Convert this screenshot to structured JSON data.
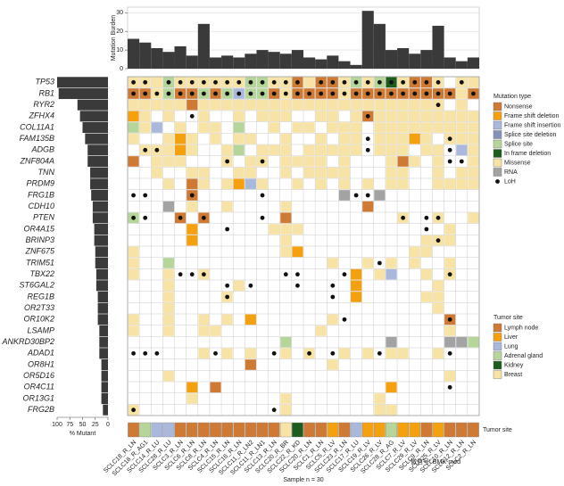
{
  "chart_data": {
    "type": "oncoprint",
    "samples": [
      "SCLC18_R_LN",
      "SCLC18_R_AG1",
      "SCLC14_R_LU",
      "SCLC28_R_LU",
      "SCLC3_R_LN",
      "SCLC6_R_LN",
      "SCLC8_R_LN",
      "SCLC4_R_LN",
      "SCLC15_R_LN",
      "SCLC16_R_LN",
      "SCLC11_R_LN2",
      "SCLC11_R_LN1",
      "SCLC13_R_LN",
      "SCLC20_R_BR",
      "SCLC22_R_KD",
      "SCLC20_R_LN",
      "SCLC1_R_LN",
      "SCLC5_R_LV",
      "SCLC23_R_LN",
      "SCLC17_R_LU",
      "SCLC19_R_LV",
      "SCLC26_R_LV",
      "SCLC28_R_AG",
      "SCLC7_R_LV",
      "SCLC29_R_LV",
      "SCLC9_R_LN",
      "SCLC25_R_LV",
      "SCLC10_R_LN",
      "SCLC12_R_LN",
      "SCLC2_R_LN"
    ],
    "genes": [
      "TP53",
      "RB1",
      "RYR2",
      "ZFHX4",
      "COL11A1",
      "FAM135B",
      "ADGB",
      "ZNF804A",
      "TNN",
      "PRDM9",
      "FRG1B",
      "CDH10",
      "PTEN",
      "OR4A15",
      "BRINP3",
      "ZNF675",
      "TRIM51",
      "TBX22",
      "ST6GAL2",
      "REG1B",
      "OR2T33",
      "OR10K2",
      "LSAMP",
      "ANKRD30BP2",
      "ADAD1",
      "OR8H1",
      "OR5D16",
      "OR4C11",
      "OR13G1",
      "FRG2B"
    ],
    "burden": {
      "ylabel": "Mutation Burden",
      "color": "#3a3a3a",
      "ylim": [
        0,
        33
      ],
      "yticks": [
        0,
        10,
        20,
        30
      ],
      "values": [
        16,
        14,
        11,
        9,
        12,
        7,
        24,
        6,
        7,
        6,
        8,
        10,
        9,
        8,
        10,
        6,
        5,
        7,
        4,
        2,
        31,
        24,
        10,
        11,
        8,
        10,
        23,
        6,
        4,
        6
      ]
    },
    "mutant": {
      "xlabel": "% Mutant",
      "color": "#3a3a3a",
      "xlim": [
        0,
        100
      ],
      "xticks": [
        100,
        75,
        50,
        25,
        0
      ],
      "values": [
        100,
        97,
        60,
        55,
        50,
        45,
        40,
        40,
        35,
        35,
        33,
        30,
        30,
        27,
        27,
        25,
        25,
        23,
        23,
        20,
        20,
        20,
        17,
        17,
        17,
        13,
        13,
        13,
        13,
        10
      ]
    },
    "mutation_types": {
      "title": "Mutation type",
      "names": [
        "Nonsense",
        "Frame shift deletion",
        "Frame shift insertion",
        "Splice site deletion",
        "Splice site",
        "In frame deletion",
        "Missense",
        "RNA"
      ],
      "colors": [
        "#cf7a34",
        "#f5a10f",
        "#aab8dc",
        "#8494b8",
        "#b5d59a",
        "#1e5c1e",
        "#f8e3a6",
        "#a3a3a3"
      ]
    },
    "loh_label": "LoH",
    "mutations": [
      [
        6,
        6,
        6,
        4,
        6,
        6,
        6,
        6,
        6,
        6,
        4,
        4,
        6,
        6,
        0,
        6,
        0,
        0,
        6,
        4,
        6,
        4,
        5,
        6,
        0,
        0,
        6,
        null,
        6,
        6
      ],
      [
        0,
        0,
        6,
        4,
        0,
        0,
        4,
        0,
        4,
        2,
        4,
        4,
        0,
        6,
        0,
        0,
        0,
        0,
        6,
        0,
        0,
        0,
        0,
        0,
        0,
        0,
        0,
        0,
        6,
        0
      ],
      [
        6,
        6,
        6,
        6,
        6,
        0,
        6,
        6,
        6,
        6,
        6,
        6,
        6,
        6,
        6,
        6,
        6,
        6,
        6,
        6,
        6,
        6,
        6,
        6,
        6,
        6,
        6,
        null,
        6,
        null
      ],
      [
        1,
        6,
        null,
        6,
        null,
        null,
        6,
        null,
        null,
        6,
        null,
        6,
        6,
        6,
        null,
        null,
        6,
        6,
        null,
        6,
        0,
        6,
        6,
        6,
        6,
        6,
        6,
        6,
        6,
        6
      ],
      [
        4,
        6,
        2,
        null,
        6,
        null,
        6,
        6,
        null,
        4,
        null,
        null,
        6,
        null,
        6,
        6,
        null,
        6,
        6,
        6,
        null,
        6,
        6,
        6,
        6,
        6,
        6,
        6,
        6,
        6
      ],
      [
        6,
        null,
        null,
        6,
        1,
        6,
        null,
        6,
        null,
        6,
        6,
        null,
        null,
        6,
        null,
        null,
        6,
        null,
        6,
        6,
        null,
        6,
        6,
        6,
        1,
        6,
        null,
        6,
        6,
        6
      ],
      [
        null,
        6,
        6,
        6,
        1,
        6,
        null,
        null,
        6,
        4,
        null,
        6,
        6,
        6,
        null,
        6,
        6,
        6,
        6,
        6,
        null,
        6,
        6,
        6,
        null,
        6,
        6,
        null,
        2,
        6
      ],
      [
        0,
        null,
        6,
        6,
        6,
        null,
        null,
        null,
        6,
        null,
        6,
        6,
        null,
        6,
        6,
        6,
        6,
        null,
        6,
        null,
        null,
        null,
        6,
        0,
        6,
        null,
        6,
        null,
        null,
        6
      ],
      [
        null,
        null,
        6,
        null,
        null,
        6,
        6,
        null,
        null,
        6,
        6,
        null,
        null,
        6,
        null,
        6,
        6,
        6,
        6,
        null,
        null,
        null,
        6,
        6,
        null,
        null,
        6,
        null,
        6,
        6
      ],
      [
        null,
        null,
        null,
        6,
        null,
        0,
        6,
        null,
        6,
        1,
        2,
        6,
        null,
        null,
        6,
        null,
        6,
        null,
        6,
        null,
        6,
        null,
        6,
        6,
        null,
        null,
        6,
        6,
        6,
        6
      ],
      [
        null,
        null,
        null,
        null,
        null,
        0,
        null,
        null,
        null,
        null,
        null,
        null,
        null,
        null,
        null,
        null,
        null,
        null,
        7,
        null,
        null,
        7,
        null,
        null,
        null,
        null,
        null,
        null,
        null,
        null
      ],
      [
        null,
        null,
        null,
        7,
        null,
        6,
        null,
        null,
        6,
        null,
        null,
        null,
        null,
        6,
        null,
        null,
        null,
        null,
        null,
        null,
        0,
        null,
        null,
        null,
        null,
        null,
        null,
        null,
        null,
        null
      ],
      [
        4,
        null,
        null,
        null,
        0,
        null,
        0,
        null,
        null,
        null,
        null,
        null,
        null,
        0,
        null,
        null,
        null,
        null,
        null,
        null,
        null,
        null,
        null,
        6,
        null,
        null,
        6,
        null,
        null,
        6
      ],
      [
        null,
        null,
        null,
        null,
        null,
        1,
        null,
        null,
        null,
        null,
        null,
        null,
        6,
        6,
        6,
        null,
        null,
        null,
        null,
        null,
        null,
        null,
        null,
        null,
        null,
        null,
        null,
        6,
        null,
        null
      ],
      [
        null,
        null,
        null,
        null,
        null,
        1,
        null,
        null,
        null,
        null,
        null,
        null,
        null,
        6,
        null,
        null,
        null,
        null,
        null,
        null,
        null,
        null,
        null,
        null,
        null,
        6,
        6,
        6,
        null,
        null
      ],
      [
        6,
        null,
        null,
        null,
        null,
        null,
        null,
        null,
        null,
        null,
        null,
        null,
        null,
        6,
        1,
        null,
        null,
        null,
        null,
        null,
        null,
        null,
        null,
        null,
        6,
        6,
        null,
        null,
        null,
        null
      ],
      [
        6,
        null,
        null,
        4,
        null,
        null,
        null,
        null,
        null,
        null,
        null,
        null,
        null,
        null,
        null,
        null,
        null,
        6,
        null,
        null,
        6,
        null,
        6,
        null,
        6,
        null,
        null,
        6,
        null,
        null
      ],
      [
        6,
        null,
        null,
        6,
        null,
        null,
        6,
        null,
        null,
        null,
        null,
        null,
        null,
        null,
        null,
        null,
        null,
        null,
        null,
        1,
        null,
        6,
        2,
        null,
        null,
        6,
        null,
        6,
        null,
        null
      ],
      [
        null,
        null,
        null,
        6,
        null,
        null,
        null,
        null,
        null,
        6,
        null,
        null,
        null,
        null,
        null,
        null,
        null,
        null,
        null,
        1,
        null,
        null,
        null,
        null,
        null,
        null,
        6,
        null,
        null,
        null
      ],
      [
        null,
        null,
        null,
        6,
        null,
        null,
        null,
        null,
        6,
        null,
        null,
        null,
        null,
        null,
        null,
        null,
        null,
        null,
        null,
        1,
        null,
        null,
        null,
        null,
        null,
        6,
        6,
        null,
        null,
        null
      ],
      [
        null,
        null,
        null,
        6,
        null,
        null,
        null,
        null,
        null,
        null,
        null,
        null,
        null,
        null,
        null,
        null,
        null,
        null,
        null,
        null,
        null,
        null,
        null,
        null,
        null,
        null,
        6,
        null,
        null,
        null
      ],
      [
        6,
        null,
        null,
        6,
        null,
        null,
        6,
        null,
        6,
        null,
        1,
        null,
        null,
        null,
        null,
        null,
        null,
        6,
        null,
        null,
        null,
        null,
        null,
        null,
        null,
        null,
        null,
        0,
        null,
        null
      ],
      [
        6,
        null,
        null,
        6,
        null,
        null,
        6,
        6,
        null,
        null,
        null,
        null,
        null,
        null,
        null,
        null,
        6,
        null,
        null,
        null,
        null,
        null,
        null,
        null,
        null,
        null,
        null,
        6,
        null,
        null
      ],
      [
        null,
        null,
        null,
        null,
        null,
        null,
        null,
        null,
        null,
        null,
        null,
        null,
        null,
        4,
        null,
        null,
        null,
        null,
        null,
        null,
        null,
        null,
        7,
        null,
        null,
        null,
        null,
        7,
        7,
        4
      ],
      [
        null,
        null,
        null,
        null,
        null,
        null,
        6,
        null,
        6,
        null,
        6,
        null,
        null,
        6,
        null,
        6,
        null,
        null,
        6,
        null,
        6,
        null,
        6,
        6,
        null,
        null,
        6,
        null,
        null,
        null
      ],
      [
        null,
        null,
        null,
        null,
        null,
        null,
        null,
        null,
        null,
        null,
        0,
        null,
        null,
        null,
        null,
        null,
        null,
        6,
        null,
        null,
        null,
        null,
        null,
        null,
        null,
        null,
        null,
        null,
        null,
        null
      ],
      [
        null,
        null,
        null,
        6,
        null,
        null,
        null,
        null,
        null,
        null,
        null,
        null,
        null,
        null,
        null,
        null,
        null,
        null,
        null,
        null,
        null,
        null,
        null,
        null,
        null,
        null,
        null,
        6,
        null,
        null
      ],
      [
        null,
        null,
        null,
        null,
        null,
        1,
        null,
        0,
        null,
        null,
        null,
        null,
        null,
        null,
        null,
        null,
        null,
        null,
        null,
        null,
        null,
        null,
        1,
        null,
        null,
        null,
        null,
        null,
        null,
        null
      ],
      [
        null,
        null,
        null,
        null,
        null,
        6,
        null,
        null,
        null,
        null,
        null,
        null,
        null,
        6,
        null,
        null,
        null,
        null,
        null,
        null,
        null,
        6,
        null,
        null,
        null,
        null,
        null,
        null,
        null,
        null
      ],
      [
        6,
        null,
        null,
        null,
        null,
        null,
        null,
        null,
        null,
        null,
        null,
        null,
        null,
        6,
        null,
        null,
        null,
        null,
        null,
        null,
        null,
        6,
        6,
        null,
        null,
        null,
        null,
        null,
        null,
        null
      ]
    ],
    "loh": [
      [
        0,
        1,
        3,
        4,
        5,
        6,
        7,
        8,
        9,
        10,
        11,
        12,
        13,
        14,
        16,
        17,
        18,
        19,
        20,
        21,
        22,
        23,
        24,
        25,
        26,
        28
      ],
      [
        0,
        1,
        2,
        3,
        4,
        5,
        6,
        7,
        8,
        9,
        10,
        11,
        12,
        13,
        14,
        15,
        16,
        17,
        18,
        19,
        20,
        21,
        22,
        23,
        24,
        25,
        26,
        27,
        29
      ],
      [
        26
      ],
      [
        5,
        20
      ],
      [],
      [
        20,
        27
      ],
      [
        1,
        2,
        20,
        27
      ],
      [
        8,
        11,
        27,
        28
      ],
      [],
      [],
      [
        0,
        1,
        5,
        11,
        19,
        20
      ],
      [],
      [
        0,
        1,
        4,
        6,
        11,
        23,
        25,
        26
      ],
      [
        8,
        25
      ],
      [
        26
      ],
      [],
      [
        21
      ],
      [
        4,
        5,
        6,
        13,
        14,
        18,
        27
      ],
      [
        8,
        10,
        14,
        17
      ],
      [
        8,
        17
      ],
      [],
      [
        18,
        27
      ],
      [],
      [],
      [
        0,
        1,
        2,
        7,
        12,
        15,
        17,
        21,
        27
      ],
      [],
      [],
      [
        27
      ],
      [],
      [
        0,
        12
      ]
    ],
    "tumor_site": {
      "title": "Tumor site",
      "row_label": "Tumor site",
      "names": [
        "Lymph node",
        "Liver",
        "Lung",
        "Adrenal gland",
        "Kidney",
        "Breast"
      ],
      "colors": [
        "#cf7a34",
        "#f5a10f",
        "#aab8dc",
        "#b5d59a",
        "#1e5c1e",
        "#f8e3a6"
      ],
      "values": [
        0,
        3,
        2,
        2,
        0,
        0,
        0,
        0,
        0,
        0,
        0,
        0,
        0,
        5,
        4,
        0,
        0,
        1,
        0,
        2,
        1,
        1,
        3,
        1,
        1,
        0,
        1,
        0,
        0,
        0
      ]
    },
    "xlabel": "Sample n = 30",
    "watermark": "微信号: BMK-med"
  }
}
